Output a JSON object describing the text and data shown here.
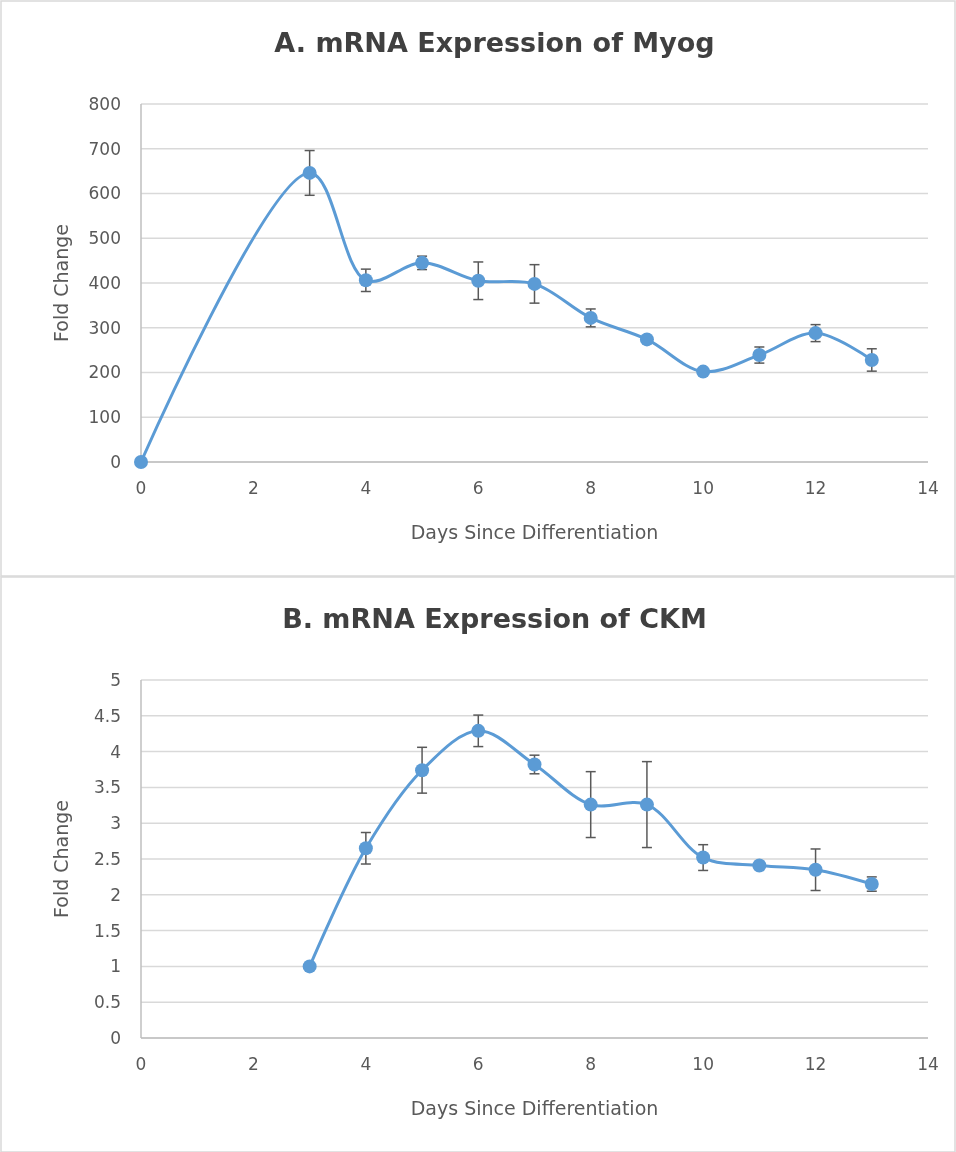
{
  "chart_data": [
    {
      "type": "line",
      "title": "A. mRNA Expression of Myog",
      "xlabel": "Days Since Differentiation",
      "ylabel": "Fold Change",
      "x": [
        0,
        3,
        4,
        5,
        6,
        7,
        8,
        9,
        10,
        11,
        12,
        13
      ],
      "series": [
        {
          "color": "#5b9bd5",
          "values": [
            0,
            646,
            406,
            445,
            405,
            398,
            322,
            274,
            202,
            239,
            288,
            228
          ],
          "errors": [
            null,
            50,
            25,
            15,
            42,
            43,
            20,
            null,
            null,
            18,
            19,
            25
          ]
        }
      ],
      "xlim": [
        0,
        14
      ],
      "xticks": [
        0,
        2,
        4,
        6,
        8,
        10,
        12,
        14
      ],
      "ylim": [
        0,
        800
      ],
      "yticks": [
        0,
        100,
        200,
        300,
        400,
        500,
        600,
        700,
        800
      ],
      "grid": "y",
      "marker": "circle",
      "line_style": "solid"
    },
    {
      "type": "line",
      "title": "B. mRNA Expression of CKM",
      "xlabel": "Days Since Differentiation",
      "ylabel": "Fold Change",
      "x": [
        3,
        4,
        5,
        6,
        7,
        8,
        9,
        10,
        11,
        12,
        13
      ],
      "series": [
        {
          "color": "#5b9bd5",
          "values": [
            1,
            2.65,
            3.74,
            4.29,
            3.82,
            3.26,
            3.26,
            2.52,
            2.41,
            2.35,
            2.15
          ],
          "errors": [
            null,
            0.22,
            0.32,
            0.22,
            0.13,
            0.46,
            0.6,
            0.18,
            null,
            0.29,
            0.1
          ]
        }
      ],
      "xlim": [
        0,
        14
      ],
      "xticks": [
        0,
        2,
        4,
        6,
        8,
        10,
        12,
        14
      ],
      "ylim": [
        0,
        5
      ],
      "yticks": [
        0,
        0.5,
        1,
        1.5,
        2,
        2.5,
        3,
        3.5,
        4,
        4.5,
        5
      ],
      "grid": "y",
      "marker": "circle",
      "line_style": "solid"
    }
  ]
}
